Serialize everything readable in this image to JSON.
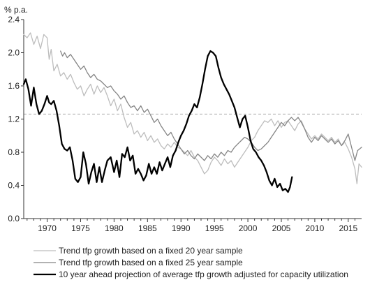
{
  "chart_data": {
    "type": "line",
    "title": "",
    "ylabel": "% p.a.",
    "xlabel": "",
    "xlim": [
      1966.5,
      2017
    ],
    "ylim": [
      0.0,
      2.4
    ],
    "x_ticks": [
      1970,
      1975,
      1980,
      1985,
      1990,
      1995,
      2000,
      2005,
      2010,
      2015
    ],
    "y_ticks": [
      0.0,
      0.4,
      0.8,
      1.2,
      1.6,
      2.0,
      2.4
    ],
    "y_tick_labels": [
      "0.0",
      "0.4",
      "0.8",
      "1.2",
      "1.6",
      "2.0",
      "2.4"
    ],
    "reference_line": {
      "y": 1.26,
      "style": "dashed",
      "color": "#aaaaaa"
    },
    "legend_position": "bottom",
    "series": [
      {
        "name": "Trend tfp growth based on a fixed 20 year sample",
        "color": "#bdbdbd",
        "width": 1.3,
        "points": [
          [
            1966.5,
            2.22
          ],
          [
            1967.0,
            2.18
          ],
          [
            1967.5,
            2.24
          ],
          [
            1968.0,
            2.1
          ],
          [
            1968.5,
            2.2
          ],
          [
            1969.0,
            2.05
          ],
          [
            1969.5,
            2.22
          ],
          [
            1970.0,
            2.18
          ],
          [
            1970.3,
            1.92
          ],
          [
            1970.6,
            2.04
          ],
          [
            1971.0,
            1.78
          ],
          [
            1971.5,
            1.86
          ],
          [
            1972.0,
            1.72
          ],
          [
            1972.5,
            1.76
          ],
          [
            1973.0,
            1.68
          ],
          [
            1973.5,
            1.74
          ],
          [
            1974.0,
            1.64
          ],
          [
            1974.5,
            1.56
          ],
          [
            1975.0,
            1.6
          ],
          [
            1975.5,
            1.48
          ],
          [
            1976.0,
            1.56
          ],
          [
            1976.5,
            1.62
          ],
          [
            1977.0,
            1.5
          ],
          [
            1977.5,
            1.6
          ],
          [
            1978.0,
            1.52
          ],
          [
            1978.5,
            1.58
          ],
          [
            1979.0,
            1.48
          ],
          [
            1979.5,
            1.36
          ],
          [
            1980.0,
            1.44
          ],
          [
            1980.5,
            1.3
          ],
          [
            1981.0,
            1.38
          ],
          [
            1981.5,
            1.22
          ],
          [
            1982.0,
            1.1
          ],
          [
            1982.5,
            1.16
          ],
          [
            1983.0,
            1.02
          ],
          [
            1983.5,
            1.06
          ],
          [
            1984.0,
            0.98
          ],
          [
            1984.5,
            1.04
          ],
          [
            1985.0,
            0.94
          ],
          [
            1985.5,
            1.0
          ],
          [
            1986.0,
            0.92
          ],
          [
            1986.5,
            0.96
          ],
          [
            1987.0,
            0.88
          ],
          [
            1987.5,
            0.84
          ],
          [
            1988.0,
            0.9
          ],
          [
            1988.5,
            0.86
          ],
          [
            1989.0,
            0.92
          ],
          [
            1989.5,
            0.86
          ],
          [
            1990.0,
            0.84
          ],
          [
            1990.5,
            0.8
          ],
          [
            1991.0,
            0.76
          ],
          [
            1991.5,
            0.82
          ],
          [
            1992.0,
            0.74
          ],
          [
            1992.5,
            0.7
          ],
          [
            1993.0,
            0.62
          ],
          [
            1993.5,
            0.54
          ],
          [
            1994.0,
            0.58
          ],
          [
            1994.5,
            0.68
          ],
          [
            1995.0,
            0.74
          ],
          [
            1995.5,
            0.7
          ],
          [
            1996.0,
            0.64
          ],
          [
            1996.5,
            0.72
          ],
          [
            1997.0,
            0.66
          ],
          [
            1997.5,
            0.7
          ],
          [
            1998.0,
            0.62
          ],
          [
            1998.5,
            0.68
          ],
          [
            1999.0,
            0.74
          ],
          [
            1999.5,
            0.8
          ],
          [
            2000.0,
            0.86
          ],
          [
            2000.5,
            0.94
          ],
          [
            2001.0,
            0.98
          ],
          [
            2001.5,
            1.06
          ],
          [
            2002.0,
            1.12
          ],
          [
            2002.5,
            1.18
          ],
          [
            2003.0,
            1.16
          ],
          [
            2003.5,
            1.2
          ],
          [
            2004.0,
            1.12
          ],
          [
            2004.5,
            1.18
          ],
          [
            2005.0,
            1.1
          ],
          [
            2005.5,
            1.16
          ],
          [
            2006.0,
            1.18
          ],
          [
            2006.5,
            1.12
          ],
          [
            2007.0,
            1.06
          ],
          [
            2007.5,
            1.14
          ],
          [
            2008.0,
            1.18
          ],
          [
            2008.5,
            1.08
          ],
          [
            2009.0,
            1.02
          ],
          [
            2009.5,
            0.96
          ],
          [
            2010.0,
            1.0
          ],
          [
            2010.5,
            0.96
          ],
          [
            2011.0,
            1.02
          ],
          [
            2011.5,
            0.98
          ],
          [
            2012.0,
            0.94
          ],
          [
            2012.5,
            0.98
          ],
          [
            2013.0,
            0.92
          ],
          [
            2013.5,
            0.96
          ],
          [
            2014.0,
            0.88
          ],
          [
            2014.5,
            0.92
          ],
          [
            2015.0,
            0.84
          ],
          [
            2015.5,
            0.74
          ],
          [
            2016.0,
            0.6
          ],
          [
            2016.3,
            0.42
          ],
          [
            2016.6,
            0.66
          ],
          [
            2017.0,
            0.62
          ]
        ]
      },
      {
        "name": "Trend tfp growth based on a fixed 25 year sample",
        "color": "#858585",
        "width": 1.3,
        "points": [
          [
            1972.0,
            2.02
          ],
          [
            1972.3,
            1.96
          ],
          [
            1972.6,
            2.0
          ],
          [
            1973.0,
            1.94
          ],
          [
            1973.5,
            1.98
          ],
          [
            1974.0,
            1.92
          ],
          [
            1974.5,
            1.86
          ],
          [
            1975.0,
            1.8
          ],
          [
            1975.5,
            1.84
          ],
          [
            1976.0,
            1.76
          ],
          [
            1976.5,
            1.7
          ],
          [
            1977.0,
            1.74
          ],
          [
            1977.5,
            1.68
          ],
          [
            1978.0,
            1.66
          ],
          [
            1978.5,
            1.62
          ],
          [
            1979.0,
            1.58
          ],
          [
            1979.5,
            1.6
          ],
          [
            1980.0,
            1.54
          ],
          [
            1980.5,
            1.5
          ],
          [
            1981.0,
            1.44
          ],
          [
            1981.5,
            1.48
          ],
          [
            1982.0,
            1.4
          ],
          [
            1982.5,
            1.34
          ],
          [
            1983.0,
            1.36
          ],
          [
            1983.5,
            1.3
          ],
          [
            1984.0,
            1.36
          ],
          [
            1984.5,
            1.28
          ],
          [
            1985.0,
            1.32
          ],
          [
            1985.5,
            1.24
          ],
          [
            1986.0,
            1.16
          ],
          [
            1986.5,
            1.2
          ],
          [
            1987.0,
            1.12
          ],
          [
            1987.5,
            1.06
          ],
          [
            1988.0,
            1.0
          ],
          [
            1988.5,
            1.04
          ],
          [
            1989.0,
            0.96
          ],
          [
            1989.5,
            0.9
          ],
          [
            1990.0,
            0.84
          ],
          [
            1990.5,
            0.78
          ],
          [
            1991.0,
            0.82
          ],
          [
            1991.5,
            0.76
          ],
          [
            1992.0,
            0.72
          ],
          [
            1992.5,
            0.78
          ],
          [
            1993.0,
            0.74
          ],
          [
            1993.5,
            0.7
          ],
          [
            1994.0,
            0.76
          ],
          [
            1994.5,
            0.72
          ],
          [
            1995.0,
            0.78
          ],
          [
            1995.5,
            0.74
          ],
          [
            1996.0,
            0.8
          ],
          [
            1996.5,
            0.76
          ],
          [
            1997.0,
            0.82
          ],
          [
            1997.5,
            0.8
          ],
          [
            1998.0,
            0.86
          ],
          [
            1998.5,
            0.9
          ],
          [
            1999.0,
            0.94
          ],
          [
            1999.5,
            0.98
          ],
          [
            2000.0,
            0.96
          ],
          [
            2000.5,
            0.92
          ],
          [
            2001.0,
            0.86
          ],
          [
            2001.5,
            0.82
          ],
          [
            2002.0,
            0.84
          ],
          [
            2002.5,
            0.88
          ],
          [
            2003.0,
            0.92
          ],
          [
            2003.5,
            0.98
          ],
          [
            2004.0,
            1.04
          ],
          [
            2004.5,
            1.1
          ],
          [
            2005.0,
            1.16
          ],
          [
            2005.5,
            1.12
          ],
          [
            2006.0,
            1.18
          ],
          [
            2006.5,
            1.22
          ],
          [
            2007.0,
            1.18
          ],
          [
            2007.5,
            1.22
          ],
          [
            2008.0,
            1.16
          ],
          [
            2008.5,
            1.08
          ],
          [
            2009.0,
            0.98
          ],
          [
            2009.5,
            0.92
          ],
          [
            2010.0,
            0.98
          ],
          [
            2010.5,
            0.94
          ],
          [
            2011.0,
            1.0
          ],
          [
            2011.5,
            0.96
          ],
          [
            2012.0,
            0.92
          ],
          [
            2012.5,
            0.96
          ],
          [
            2013.0,
            0.9
          ],
          [
            2013.5,
            0.94
          ],
          [
            2014.0,
            0.88
          ],
          [
            2014.5,
            0.94
          ],
          [
            2015.0,
            1.02
          ],
          [
            2015.5,
            0.86
          ],
          [
            2016.0,
            0.7
          ],
          [
            2016.4,
            0.82
          ],
          [
            2017.0,
            0.86
          ]
        ]
      },
      {
        "name": "10 year ahead projection of average tfp growth adjusted for capacity utilization",
        "color": "#000000",
        "width": 2.3,
        "points": [
          [
            1966.5,
            1.62
          ],
          [
            1966.8,
            1.68
          ],
          [
            1967.2,
            1.56
          ],
          [
            1967.6,
            1.36
          ],
          [
            1968.0,
            1.58
          ],
          [
            1968.4,
            1.38
          ],
          [
            1968.8,
            1.26
          ],
          [
            1969.2,
            1.3
          ],
          [
            1969.6,
            1.38
          ],
          [
            1970.0,
            1.48
          ],
          [
            1970.3,
            1.4
          ],
          [
            1970.6,
            1.38
          ],
          [
            1971.0,
            1.42
          ],
          [
            1971.4,
            1.3
          ],
          [
            1971.8,
            1.12
          ],
          [
            1972.2,
            0.9
          ],
          [
            1972.6,
            0.84
          ],
          [
            1973.0,
            0.82
          ],
          [
            1973.4,
            0.86
          ],
          [
            1973.8,
            0.7
          ],
          [
            1974.2,
            0.48
          ],
          [
            1974.6,
            0.44
          ],
          [
            1975.0,
            0.5
          ],
          [
            1975.4,
            0.8
          ],
          [
            1975.8,
            0.66
          ],
          [
            1976.2,
            0.42
          ],
          [
            1976.6,
            0.56
          ],
          [
            1977.0,
            0.66
          ],
          [
            1977.4,
            0.44
          ],
          [
            1977.8,
            0.62
          ],
          [
            1978.2,
            0.44
          ],
          [
            1978.6,
            0.58
          ],
          [
            1979.0,
            0.7
          ],
          [
            1979.5,
            0.74
          ],
          [
            1980.0,
            0.56
          ],
          [
            1980.4,
            0.7
          ],
          [
            1980.8,
            0.5
          ],
          [
            1981.2,
            0.78
          ],
          [
            1981.6,
            0.74
          ],
          [
            1982.0,
            0.86
          ],
          [
            1982.4,
            0.7
          ],
          [
            1982.8,
            0.76
          ],
          [
            1983.2,
            0.54
          ],
          [
            1983.6,
            0.6
          ],
          [
            1984.0,
            0.54
          ],
          [
            1984.4,
            0.46
          ],
          [
            1984.8,
            0.52
          ],
          [
            1985.2,
            0.66
          ],
          [
            1985.6,
            0.54
          ],
          [
            1986.0,
            0.62
          ],
          [
            1986.4,
            0.54
          ],
          [
            1986.8,
            0.68
          ],
          [
            1987.2,
            0.58
          ],
          [
            1987.6,
            0.66
          ],
          [
            1988.0,
            0.74
          ],
          [
            1988.4,
            0.62
          ],
          [
            1988.8,
            0.76
          ],
          [
            1989.2,
            0.82
          ],
          [
            1989.6,
            0.92
          ],
          [
            1990.0,
            1.0
          ],
          [
            1990.4,
            1.06
          ],
          [
            1990.8,
            1.14
          ],
          [
            1991.2,
            1.24
          ],
          [
            1991.6,
            1.3
          ],
          [
            1992.0,
            1.38
          ],
          [
            1992.4,
            1.34
          ],
          [
            1992.8,
            1.46
          ],
          [
            1993.2,
            1.62
          ],
          [
            1993.6,
            1.8
          ],
          [
            1994.0,
            1.96
          ],
          [
            1994.4,
            2.02
          ],
          [
            1994.8,
            2.0
          ],
          [
            1995.2,
            1.96
          ],
          [
            1995.6,
            1.82
          ],
          [
            1996.0,
            1.7
          ],
          [
            1996.4,
            1.62
          ],
          [
            1996.8,
            1.56
          ],
          [
            1997.2,
            1.5
          ],
          [
            1997.6,
            1.42
          ],
          [
            1998.0,
            1.34
          ],
          [
            1998.4,
            1.22
          ],
          [
            1998.8,
            1.1
          ],
          [
            1999.2,
            1.2
          ],
          [
            1999.6,
            1.24
          ],
          [
            2000.0,
            1.1
          ],
          [
            2000.4,
            0.94
          ],
          [
            2000.8,
            0.84
          ],
          [
            2001.2,
            0.8
          ],
          [
            2001.6,
            0.74
          ],
          [
            2002.0,
            0.7
          ],
          [
            2002.4,
            0.64
          ],
          [
            2002.8,
            0.56
          ],
          [
            2003.2,
            0.46
          ],
          [
            2003.6,
            0.4
          ],
          [
            2004.0,
            0.48
          ],
          [
            2004.4,
            0.38
          ],
          [
            2004.8,
            0.42
          ],
          [
            2005.2,
            0.34
          ],
          [
            2005.6,
            0.36
          ],
          [
            2006.0,
            0.32
          ],
          [
            2006.3,
            0.38
          ],
          [
            2006.6,
            0.5
          ]
        ]
      }
    ]
  }
}
